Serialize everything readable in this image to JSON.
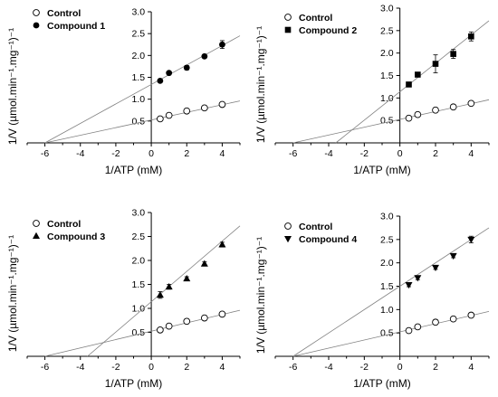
{
  "chart_data": [
    {
      "type": "scatter",
      "xlabel": "1/ATP (mM)",
      "ylabel": "1/V (µmol.min⁻¹.mg⁻¹)⁻¹",
      "xlim": [
        -7,
        5
      ],
      "ylim": [
        0,
        3
      ],
      "xticks": [
        -6,
        -4,
        -2,
        0,
        2,
        4
      ],
      "yticks": [
        0.5,
        1.0,
        1.5,
        2.0,
        2.5,
        3.0
      ],
      "series": [
        {
          "name": "Control",
          "marker": "open-circle",
          "x": [
            0.5,
            1,
            2,
            3,
            4
          ],
          "y": [
            0.55,
            0.63,
            0.73,
            0.8,
            0.88
          ],
          "err": [
            0.02,
            0.02,
            0.05,
            0.02,
            0.02
          ],
          "fit": {
            "x": [
              -6,
              5
            ],
            "y": [
              0,
              0.96
            ]
          }
        },
        {
          "name": "Compound 1",
          "marker": "filled-circle",
          "x": [
            0.5,
            1,
            2,
            3,
            4
          ],
          "y": [
            1.42,
            1.6,
            1.72,
            1.98,
            2.25
          ],
          "err": [
            0.03,
            0.03,
            0.05,
            0.04,
            0.09
          ],
          "fit": {
            "x": [
              -6,
              5
            ],
            "y": [
              0,
              2.45
            ]
          }
        }
      ]
    },
    {
      "type": "scatter",
      "xlabel": "1/ATP (mM)",
      "ylabel": "1/V (µmol.min⁻¹.mg⁻¹)⁻¹",
      "xlim": [
        -7,
        5
      ],
      "ylim": [
        0,
        3
      ],
      "xticks": [
        -6,
        -4,
        -2,
        0,
        2,
        4
      ],
      "yticks": [
        0.5,
        1.0,
        1.5,
        2.0,
        2.5,
        3.0
      ],
      "series": [
        {
          "name": "Control",
          "marker": "open-circle",
          "x": [
            0.5,
            1,
            2,
            3,
            4
          ],
          "y": [
            0.55,
            0.63,
            0.73,
            0.8,
            0.88
          ],
          "err": [
            0.02,
            0.02,
            0.05,
            0.02,
            0.02
          ],
          "fit": {
            "x": [
              -6,
              5
            ],
            "y": [
              0,
              0.96
            ]
          }
        },
        {
          "name": "Compound 2",
          "marker": "filled-square",
          "x": [
            0.5,
            1,
            2,
            3,
            4
          ],
          "y": [
            1.3,
            1.52,
            1.76,
            1.98,
            2.37
          ],
          "err": [
            0.04,
            0.05,
            0.2,
            0.1,
            0.1
          ],
          "fit": {
            "x": [
              -3.6,
              5
            ],
            "y": [
              0,
              2.72
            ]
          }
        }
      ]
    },
    {
      "type": "scatter",
      "xlabel": "1/ATP (mM)",
      "ylabel": "1/V (µmol.min⁻¹.mg⁻¹)⁻¹",
      "xlim": [
        -7,
        5
      ],
      "ylim": [
        0,
        3
      ],
      "xticks": [
        -6,
        -4,
        -2,
        0,
        2,
        4
      ],
      "yticks": [
        0.5,
        1.0,
        1.5,
        2.0,
        2.5,
        3.0
      ],
      "series": [
        {
          "name": "Control",
          "marker": "open-circle",
          "x": [
            0.5,
            1,
            2,
            3,
            4
          ],
          "y": [
            0.55,
            0.63,
            0.73,
            0.8,
            0.88
          ],
          "err": [
            0.02,
            0.02,
            0.05,
            0.02,
            0.02
          ],
          "fit": {
            "x": [
              -6,
              5
            ],
            "y": [
              0,
              0.96
            ]
          }
        },
        {
          "name": "Compound 3",
          "marker": "filled-triangle-up",
          "x": [
            0.5,
            1,
            2,
            3,
            4
          ],
          "y": [
            1.28,
            1.45,
            1.62,
            1.93,
            2.33
          ],
          "err": [
            0.07,
            0.05,
            0.04,
            0.04,
            0.05
          ],
          "fit": {
            "x": [
              -3.6,
              5
            ],
            "y": [
              0,
              2.72
            ]
          }
        }
      ]
    },
    {
      "type": "scatter",
      "xlabel": "1/ATP (mM)",
      "ylabel": "1/V (µmol.min⁻¹.mg⁻¹)⁻¹",
      "xlim": [
        -7,
        5
      ],
      "ylim": [
        0,
        3
      ],
      "xticks": [
        -6,
        -4,
        -2,
        0,
        2,
        4
      ],
      "yticks": [
        0.5,
        1.0,
        1.5,
        2.0,
        2.5,
        3.0
      ],
      "series": [
        {
          "name": "Control",
          "marker": "open-circle",
          "x": [
            0.5,
            1,
            2,
            3,
            4
          ],
          "y": [
            0.55,
            0.63,
            0.73,
            0.8,
            0.88
          ],
          "err": [
            0.02,
            0.02,
            0.05,
            0.02,
            0.02
          ],
          "fit": {
            "x": [
              -6,
              5
            ],
            "y": [
              0,
              0.96
            ]
          }
        },
        {
          "name": "Compound 4",
          "marker": "filled-triangle-down",
          "x": [
            0.5,
            1,
            2,
            3,
            4
          ],
          "y": [
            1.53,
            1.68,
            1.9,
            2.15,
            2.5
          ],
          "err": [
            0.04,
            0.04,
            0.04,
            0.04,
            0.07
          ],
          "fit": {
            "x": [
              -6,
              5
            ],
            "y": [
              0,
              2.75
            ]
          }
        }
      ]
    }
  ]
}
